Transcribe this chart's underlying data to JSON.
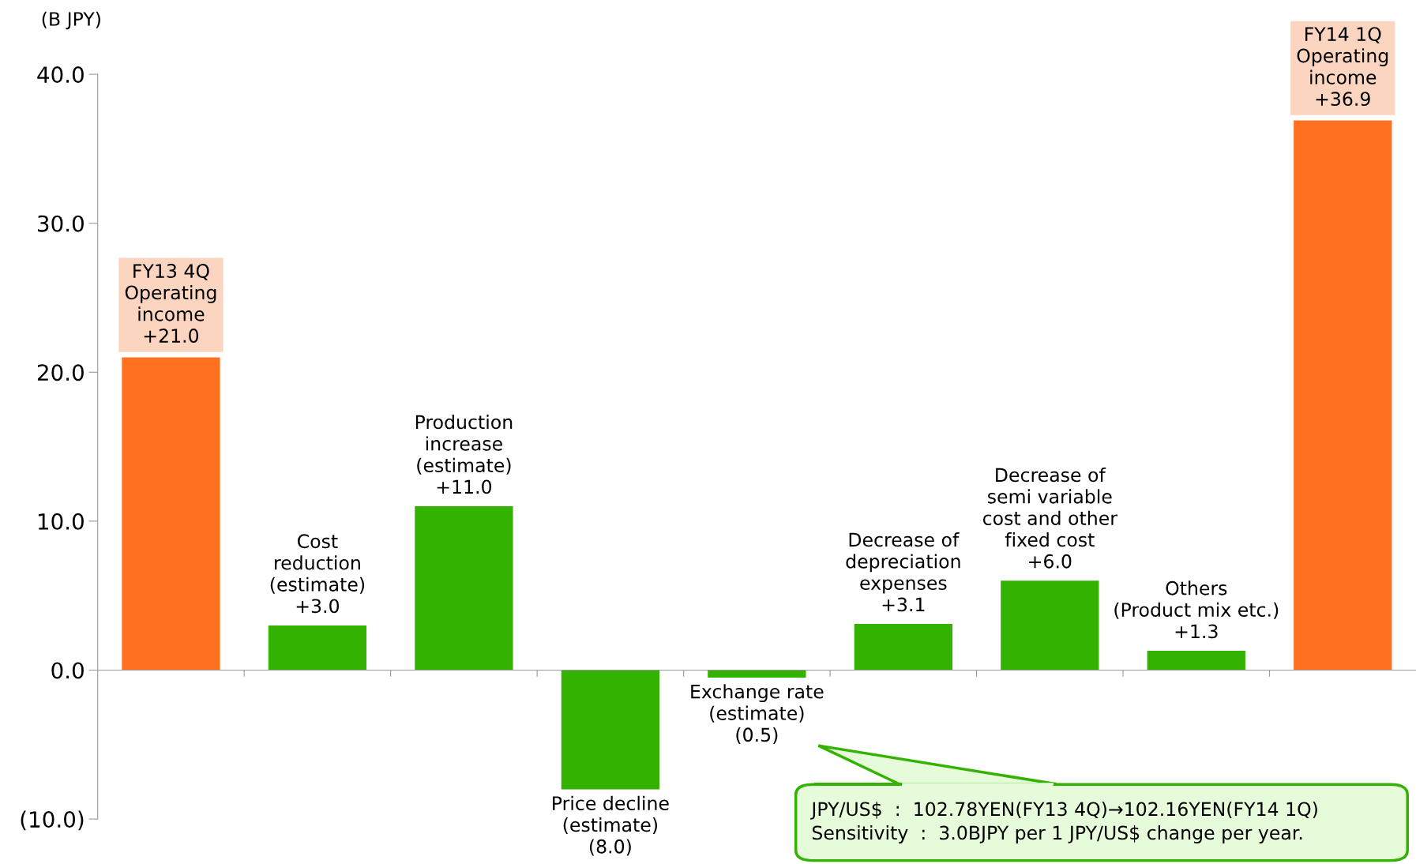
{
  "chart_data": {
    "type": "bar",
    "ylabel": "(B JPY)",
    "categories": [
      "FY13 4Q\nOperating\nincome",
      "Cost\nreduction\n(estimate)",
      "Production\nincrease\n(estimate)",
      "Price decline\n(estimate)",
      "Exchange rate\n(estimate)",
      "Decrease of\ndepreciation\nexpenses",
      "Decrease of\nsemi variable\ncost and other\nfixed cost",
      "Others\n(Product mix etc.)",
      "FY14 1Q\nOperating\nincome"
    ],
    "values": [
      21.0,
      3.0,
      11.0,
      -8.0,
      -0.5,
      3.1,
      6.0,
      1.3,
      36.9
    ],
    "value_labels": [
      "+21.0",
      "+3.0",
      "+11.0",
      "(8.0)",
      "(0.5)",
      "+3.1",
      "+6.0",
      "+1.3",
      "+36.9"
    ],
    "colors": [
      "#ff7020",
      "#33b300",
      "#33b300",
      "#33b300",
      "#33b300",
      "#33b300",
      "#33b300",
      "#33b300",
      "#ff7020"
    ],
    "ylim": [
      -10,
      40
    ],
    "yticks": [
      {
        "value": -10,
        "label": "(10.0)"
      },
      {
        "value": 0,
        "label": "0.0"
      },
      {
        "value": 10,
        "label": "10.0"
      },
      {
        "value": 20,
        "label": "20.0"
      },
      {
        "value": 30,
        "label": "30.0"
      },
      {
        "value": 40,
        "label": "40.0"
      }
    ],
    "tick_labels": "y",
    "legend": false,
    "annotations": [
      "JPY/US$  :  102.78YEN(FY13 4Q)→102.16YEN(FY14 1Q)\nSensitivity  :  3.0BJPY per 1 JPY/US$ change per year."
    ]
  }
}
